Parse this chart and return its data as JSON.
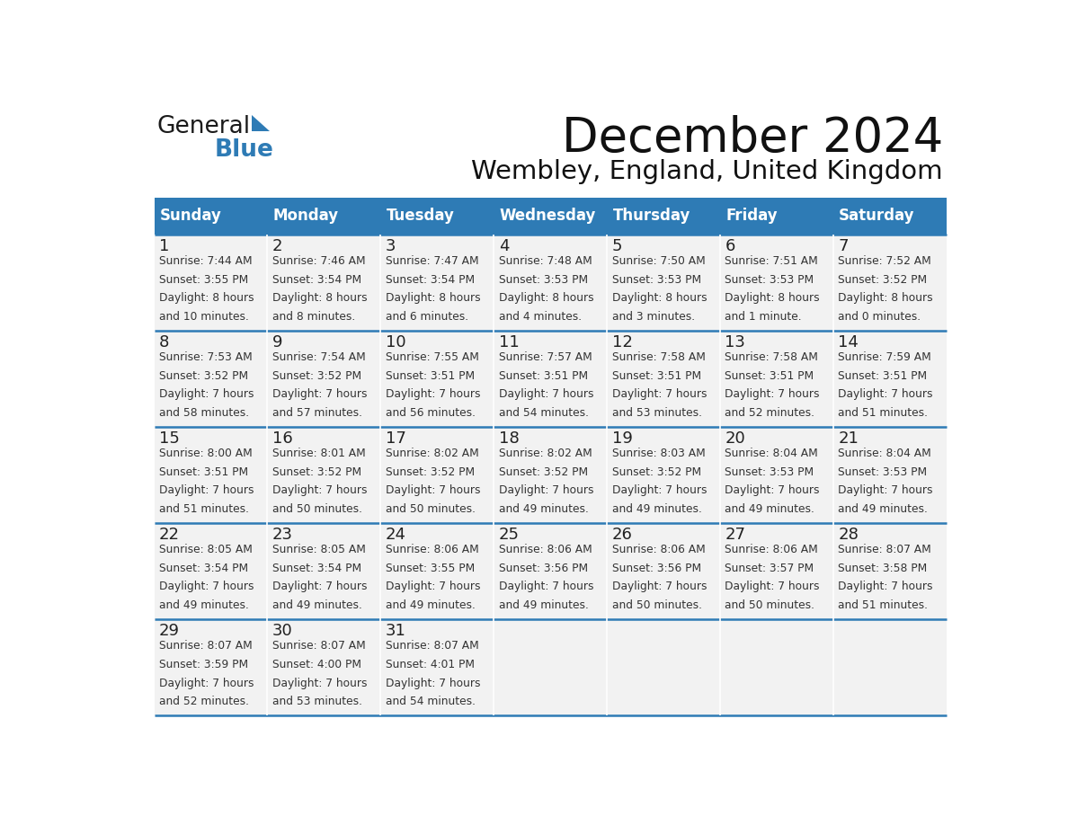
{
  "title": "December 2024",
  "subtitle": "Wembley, England, United Kingdom",
  "header_color": "#2E7BB5",
  "header_text_color": "#FFFFFF",
  "grid_line_color": "#2E7BB5",
  "day_names": [
    "Sunday",
    "Monday",
    "Tuesday",
    "Wednesday",
    "Thursday",
    "Friday",
    "Saturday"
  ],
  "bg_color": "#FFFFFF",
  "cell_bg_color": "#F2F2F2",
  "day_num_color": "#222222",
  "info_text_color": "#333333",
  "calendar_data": [
    [
      {
        "day": "1",
        "sunrise": "7:44 AM",
        "sunset": "3:55 PM",
        "daylight_line1": "8 hours",
        "daylight_line2": "and 10 minutes."
      },
      {
        "day": "2",
        "sunrise": "7:46 AM",
        "sunset": "3:54 PM",
        "daylight_line1": "8 hours",
        "daylight_line2": "and 8 minutes."
      },
      {
        "day": "3",
        "sunrise": "7:47 AM",
        "sunset": "3:54 PM",
        "daylight_line1": "8 hours",
        "daylight_line2": "and 6 minutes."
      },
      {
        "day": "4",
        "sunrise": "7:48 AM",
        "sunset": "3:53 PM",
        "daylight_line1": "8 hours",
        "daylight_line2": "and 4 minutes."
      },
      {
        "day": "5",
        "sunrise": "7:50 AM",
        "sunset": "3:53 PM",
        "daylight_line1": "8 hours",
        "daylight_line2": "and 3 minutes."
      },
      {
        "day": "6",
        "sunrise": "7:51 AM",
        "sunset": "3:53 PM",
        "daylight_line1": "8 hours",
        "daylight_line2": "and 1 minute."
      },
      {
        "day": "7",
        "sunrise": "7:52 AM",
        "sunset": "3:52 PM",
        "daylight_line1": "8 hours",
        "daylight_line2": "and 0 minutes."
      }
    ],
    [
      {
        "day": "8",
        "sunrise": "7:53 AM",
        "sunset": "3:52 PM",
        "daylight_line1": "7 hours",
        "daylight_line2": "and 58 minutes."
      },
      {
        "day": "9",
        "sunrise": "7:54 AM",
        "sunset": "3:52 PM",
        "daylight_line1": "7 hours",
        "daylight_line2": "and 57 minutes."
      },
      {
        "day": "10",
        "sunrise": "7:55 AM",
        "sunset": "3:51 PM",
        "daylight_line1": "7 hours",
        "daylight_line2": "and 56 minutes."
      },
      {
        "day": "11",
        "sunrise": "7:57 AM",
        "sunset": "3:51 PM",
        "daylight_line1": "7 hours",
        "daylight_line2": "and 54 minutes."
      },
      {
        "day": "12",
        "sunrise": "7:58 AM",
        "sunset": "3:51 PM",
        "daylight_line1": "7 hours",
        "daylight_line2": "and 53 minutes."
      },
      {
        "day": "13",
        "sunrise": "7:58 AM",
        "sunset": "3:51 PM",
        "daylight_line1": "7 hours",
        "daylight_line2": "and 52 minutes."
      },
      {
        "day": "14",
        "sunrise": "7:59 AM",
        "sunset": "3:51 PM",
        "daylight_line1": "7 hours",
        "daylight_line2": "and 51 minutes."
      }
    ],
    [
      {
        "day": "15",
        "sunrise": "8:00 AM",
        "sunset": "3:51 PM",
        "daylight_line1": "7 hours",
        "daylight_line2": "and 51 minutes."
      },
      {
        "day": "16",
        "sunrise": "8:01 AM",
        "sunset": "3:52 PM",
        "daylight_line1": "7 hours",
        "daylight_line2": "and 50 minutes."
      },
      {
        "day": "17",
        "sunrise": "8:02 AM",
        "sunset": "3:52 PM",
        "daylight_line1": "7 hours",
        "daylight_line2": "and 50 minutes."
      },
      {
        "day": "18",
        "sunrise": "8:02 AM",
        "sunset": "3:52 PM",
        "daylight_line1": "7 hours",
        "daylight_line2": "and 49 minutes."
      },
      {
        "day": "19",
        "sunrise": "8:03 AM",
        "sunset": "3:52 PM",
        "daylight_line1": "7 hours",
        "daylight_line2": "and 49 minutes."
      },
      {
        "day": "20",
        "sunrise": "8:04 AM",
        "sunset": "3:53 PM",
        "daylight_line1": "7 hours",
        "daylight_line2": "and 49 minutes."
      },
      {
        "day": "21",
        "sunrise": "8:04 AM",
        "sunset": "3:53 PM",
        "daylight_line1": "7 hours",
        "daylight_line2": "and 49 minutes."
      }
    ],
    [
      {
        "day": "22",
        "sunrise": "8:05 AM",
        "sunset": "3:54 PM",
        "daylight_line1": "7 hours",
        "daylight_line2": "and 49 minutes."
      },
      {
        "day": "23",
        "sunrise": "8:05 AM",
        "sunset": "3:54 PM",
        "daylight_line1": "7 hours",
        "daylight_line2": "and 49 minutes."
      },
      {
        "day": "24",
        "sunrise": "8:06 AM",
        "sunset": "3:55 PM",
        "daylight_line1": "7 hours",
        "daylight_line2": "and 49 minutes."
      },
      {
        "day": "25",
        "sunrise": "8:06 AM",
        "sunset": "3:56 PM",
        "daylight_line1": "7 hours",
        "daylight_line2": "and 49 minutes."
      },
      {
        "day": "26",
        "sunrise": "8:06 AM",
        "sunset": "3:56 PM",
        "daylight_line1": "7 hours",
        "daylight_line2": "and 50 minutes."
      },
      {
        "day": "27",
        "sunrise": "8:06 AM",
        "sunset": "3:57 PM",
        "daylight_line1": "7 hours",
        "daylight_line2": "and 50 minutes."
      },
      {
        "day": "28",
        "sunrise": "8:07 AM",
        "sunset": "3:58 PM",
        "daylight_line1": "7 hours",
        "daylight_line2": "and 51 minutes."
      }
    ],
    [
      {
        "day": "29",
        "sunrise": "8:07 AM",
        "sunset": "3:59 PM",
        "daylight_line1": "7 hours",
        "daylight_line2": "and 52 minutes."
      },
      {
        "day": "30",
        "sunrise": "8:07 AM",
        "sunset": "4:00 PM",
        "daylight_line1": "7 hours",
        "daylight_line2": "and 53 minutes."
      },
      {
        "day": "31",
        "sunrise": "8:07 AM",
        "sunset": "4:01 PM",
        "daylight_line1": "7 hours",
        "daylight_line2": "and 54 minutes."
      },
      null,
      null,
      null,
      null
    ]
  ]
}
